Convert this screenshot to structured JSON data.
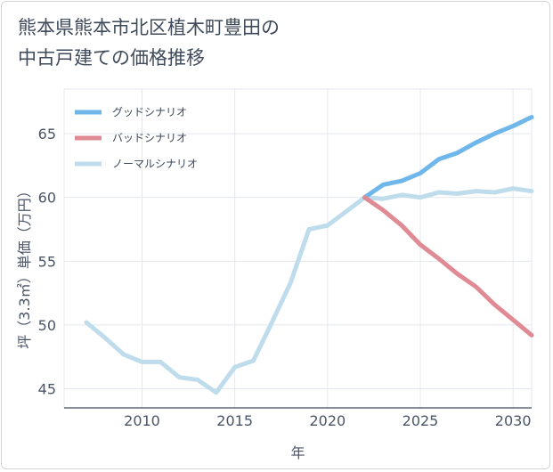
{
  "title": "熊本県熊本市北区植木町豊田の\n中古戸建ての価格推移",
  "chart_data": {
    "type": "line",
    "title": "熊本県熊本市北区植木町豊田の\n中古戸建ての価格推移",
    "xlabel": "年",
    "ylabel": "坪（3.3㎡）単価（万円）",
    "xlim": [
      2005.8,
      2031
    ],
    "ylim": [
      43.5,
      68.5
    ],
    "xticks": [
      2010,
      2015,
      2020,
      2025,
      2030
    ],
    "yticks": [
      45,
      50,
      55,
      60,
      65
    ],
    "grid": true,
    "legend_position": "top-left",
    "series": [
      {
        "name": "グッドシナリオ",
        "color": "#6fb7ea",
        "x": [
          2022,
          2023,
          2024,
          2025,
          2026,
          2027,
          2028,
          2029,
          2030,
          2031
        ],
        "y": [
          60.0,
          61.0,
          61.3,
          61.9,
          63.0,
          63.5,
          64.3,
          65.0,
          65.6,
          66.3
        ]
      },
      {
        "name": "バッドシナリオ",
        "color": "#e08a94",
        "x": [
          2022,
          2023,
          2024,
          2025,
          2026,
          2027,
          2028,
          2029,
          2030,
          2031
        ],
        "y": [
          60.0,
          59.0,
          57.8,
          56.3,
          55.2,
          54.0,
          53.0,
          51.6,
          50.4,
          49.2
        ]
      },
      {
        "name": "ノーマルシナリオ",
        "color": "#bfdcec",
        "x": [
          2007,
          2008,
          2009,
          2010,
          2011,
          2012,
          2013,
          2014,
          2015,
          2016,
          2017,
          2018,
          2019,
          2020,
          2021,
          2022,
          2023,
          2024,
          2025,
          2026,
          2027,
          2028,
          2029,
          2030,
          2031
        ],
        "y": [
          50.2,
          49.0,
          47.7,
          47.1,
          47.1,
          45.9,
          45.7,
          44.7,
          46.7,
          47.2,
          50.2,
          53.3,
          57.5,
          57.8,
          58.9,
          60.0,
          59.9,
          60.2,
          60.0,
          60.4,
          60.3,
          60.5,
          60.4,
          60.7,
          60.5
        ]
      }
    ]
  }
}
